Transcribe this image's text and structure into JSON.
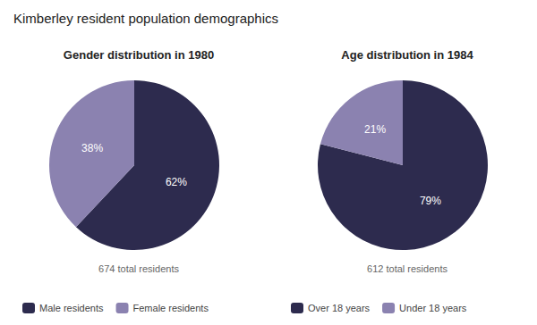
{
  "title": "Kimberley resident population demographics",
  "chart_data": [
    {
      "type": "pie",
      "title": "Gender distribution in 1980",
      "categories": [
        "Male residents",
        "Female residents"
      ],
      "values": [
        62,
        38
      ],
      "value_labels": [
        "62%",
        "38%"
      ],
      "colors": [
        "#2d2b4e",
        "#8b82b0"
      ],
      "data_labels": true,
      "annotations": [
        "674 total residents"
      ],
      "legend": "bottom"
    },
    {
      "type": "pie",
      "title": "Age distribution in 1984",
      "categories": [
        "Over 18 years",
        "Under 18 years"
      ],
      "values": [
        79,
        21
      ],
      "value_labels": [
        "79%",
        "21%"
      ],
      "colors": [
        "#2d2b4e",
        "#8b82b0"
      ],
      "data_labels": true,
      "annotations": [
        "612 total residents"
      ],
      "legend": "bottom"
    }
  ]
}
